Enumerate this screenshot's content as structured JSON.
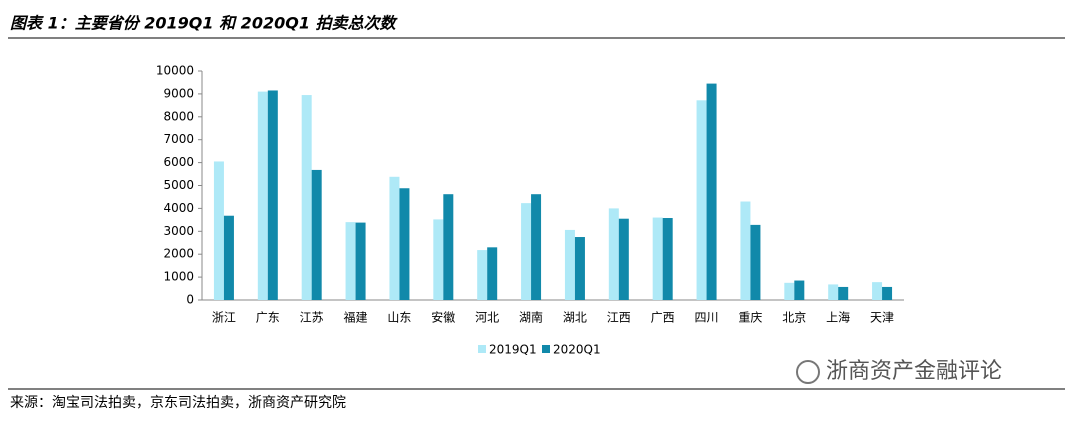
{
  "chart_data": {
    "type": "bar",
    "title": "图表 1：主要省份 2019Q1 和 2020Q1 拍卖总次数",
    "categories": [
      "浙江",
      "广东",
      "江苏",
      "福建",
      "山东",
      "安徽",
      "河北",
      "湖南",
      "湖北",
      "江西",
      "广西",
      "四川",
      "重庆",
      "北京",
      "上海",
      "天津"
    ],
    "series": [
      {
        "name": "2019Q1",
        "color": "#aee9f7",
        "values": [
          6050,
          9100,
          8950,
          3400,
          5380,
          3520,
          2180,
          4230,
          3060,
          4000,
          3600,
          8720,
          4300,
          750,
          680,
          780
        ]
      },
      {
        "name": "2020Q1",
        "color": "#1189aa",
        "values": [
          3680,
          9150,
          5680,
          3380,
          4880,
          4620,
          2300,
          4620,
          2750,
          3550,
          3580,
          9450,
          3280,
          850,
          570,
          570
        ]
      }
    ],
    "ylim": [
      0,
      10000
    ],
    "yticks": [
      0,
      1000,
      2000,
      3000,
      4000,
      5000,
      6000,
      7000,
      8000,
      9000,
      10000
    ],
    "source": "来源：淘宝司法拍卖，京东司法拍卖，浙商资产研究院",
    "watermark": "浙商资产金融评论"
  }
}
